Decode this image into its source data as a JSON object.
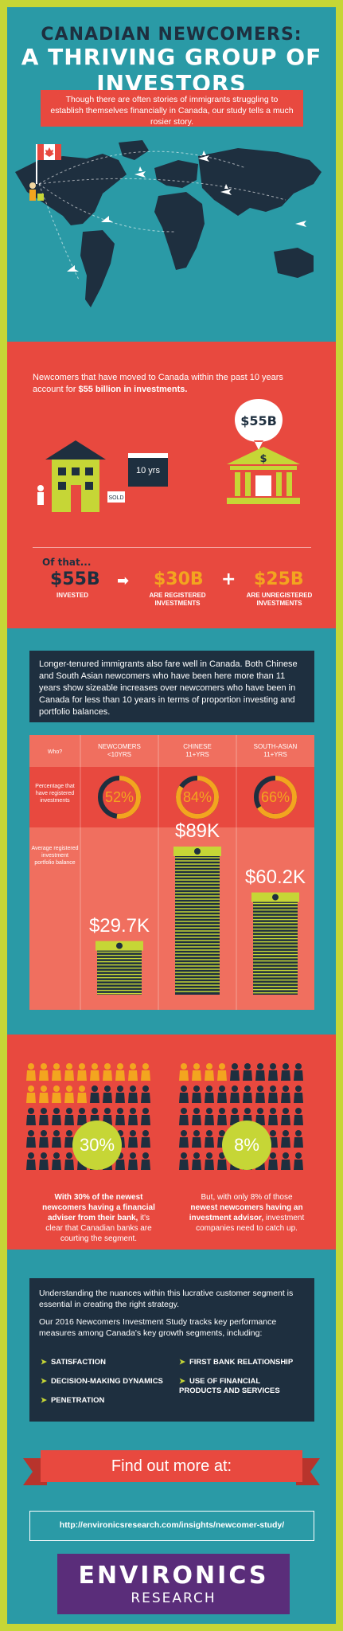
{
  "header": {
    "title_line1": "CANADIAN NEWCOMERS:",
    "title_line2": "A THRIVING GROUP OF INVESTORS",
    "intro": "Though there are often stories of immigrants struggling to establish themselves financially in Canada, our study tells a much rosier story."
  },
  "investments": {
    "text_pre": "Newcomers that have moved to Canada within the past 10 years account for ",
    "text_bold": "$55 billion in investments.",
    "pin_label": "$55B",
    "calendar_label": "10 yrs",
    "sold_sign": "SOLD",
    "of_that": "Of that...",
    "items": [
      {
        "value": "$55B",
        "label": "INVESTED"
      },
      {
        "value": "$30B",
        "label": "ARE REGISTERED INVESTMENTS"
      },
      {
        "value": "$25B",
        "label": "ARE UNREGISTERED INVESTMENTS"
      }
    ],
    "arrow": "➡",
    "plus": "+"
  },
  "tenure": {
    "text": "Longer-tenured immigrants also fare well in Canada. Both Chinese and South Asian newcomers who have been here more than 11 years show sizeable increases over newcomers who have been in Canada for less than 10 years in terms of proportion investing and portfolio balances.",
    "who_label": "Who?",
    "pct_label": "Percentage that have registered investments",
    "bal_label": "Average registered investment portfolio balance",
    "groups": [
      {
        "name": "NEWCOMERS",
        "sub": "<10YRS",
        "pct_text": "52%",
        "pct": 52,
        "bal_text": "$29.7K",
        "bal": 29.7
      },
      {
        "name": "CHINESE",
        "sub": "11+YRS",
        "pct_text": "84%",
        "pct": 84,
        "bal_text": "$89K",
        "bal": 89
      },
      {
        "name": "SOUTH-ASIAN",
        "sub": "11+YRS",
        "pct_text": "66%",
        "pct": 66,
        "bal_text": "$60.2K",
        "bal": 60.2
      }
    ]
  },
  "advisers": {
    "left_pct": "30%",
    "left_caption_bold": "With 30% of the newest newcomers having a financial adviser from their bank,",
    "left_caption_rest": " it's clear that Canadian banks are courting the segment.",
    "right_pct": "8%",
    "right_caption_pre": "But, with only 8% of those ",
    "right_caption_bold": "newest newcomers having an investment advisor,",
    "right_caption_rest": " investment companies need to catch up."
  },
  "study": {
    "p1": "Understanding the nuances within this lucrative customer segment is essential in creating the right strategy.",
    "p2": "Our 2016 Newcomers Investment Study tracks key performance measures among Canada's key growth segments, including:",
    "measures_left": [
      "SATISFACTION",
      "DECISION-MAKING DYNAMICS",
      "PENETRATION"
    ],
    "measures_right": [
      "FIRST BANK RELATIONSHIP",
      "USE OF FINANCIAL PRODUCTS AND SERVICES"
    ],
    "find_out": "Find out more at:",
    "url": "http://environicsresearch.com/insights/newcomer-study/",
    "logo_top": "ENVIRONICS",
    "logo_bottom": "RESEARCH"
  },
  "colors": {
    "teal": "#2a9aa6",
    "red": "#e8493f",
    "navy": "#1e2f3f",
    "lime": "#c6d636",
    "orange": "#f3a51f",
    "purple": "#5a2d7a"
  }
}
